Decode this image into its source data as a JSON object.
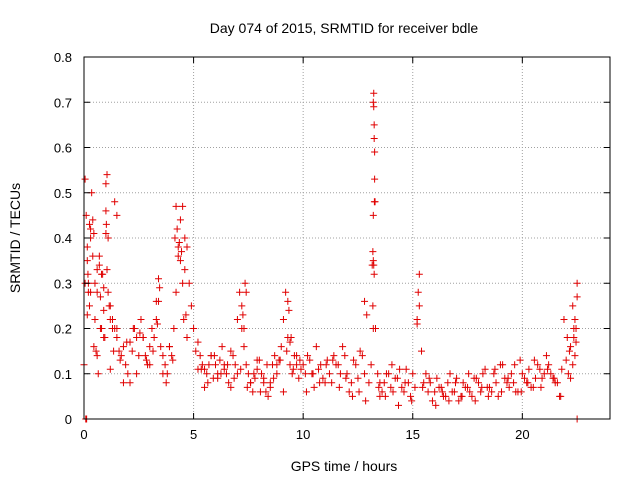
{
  "chart_data": {
    "type": "scatter",
    "title": "Day 074 of 2015, SRMTID for receiver bdle",
    "xlabel": "GPS time / hours",
    "ylabel": "SRMTID / TECUs",
    "xlim": [
      0,
      24
    ],
    "ylim": [
      0,
      0.8
    ],
    "xticks": [
      0,
      5,
      10,
      15,
      20
    ],
    "xtick_labels": [
      "0",
      "5",
      "10",
      "15",
      "20"
    ],
    "yticks": [
      0,
      0.1,
      0.2,
      0.3,
      0.4,
      0.5,
      0.6,
      0.7,
      0.8
    ],
    "ytick_labels": [
      "0",
      "0.1",
      "0.2",
      "0.3",
      "0.4",
      "0.5",
      "0.6",
      "0.7",
      "0.8"
    ],
    "grid": true,
    "marker": "+",
    "series": [
      {
        "name": "SRMTID",
        "color": "#e00000",
        "x": [
          0.0,
          0.05,
          0.1,
          0.15,
          0.2,
          0.25,
          0.3,
          0.4,
          0.5,
          0.6,
          0.7,
          0.8,
          0.9,
          1.0,
          1.05,
          1.1,
          1.2,
          1.3,
          1.4,
          1.5,
          1.6,
          1.7,
          1.8,
          1.9,
          2.0,
          2.1,
          2.2,
          2.3,
          2.4,
          2.5,
          2.6,
          2.7,
          2.8,
          2.9,
          3.0,
          3.1,
          3.2,
          3.3,
          3.4,
          3.5,
          3.6,
          3.7,
          3.8,
          3.9,
          4.0,
          4.1,
          4.2,
          4.3,
          4.4,
          4.5,
          4.6,
          4.7,
          4.8,
          4.9,
          5.0,
          5.1,
          5.2,
          5.3,
          5.4,
          5.5,
          5.6,
          5.7,
          5.8,
          5.9,
          6.0,
          6.1,
          6.2,
          6.3,
          6.4,
          6.5,
          6.6,
          6.7,
          6.8,
          6.9,
          7.0,
          7.1,
          7.2,
          7.3,
          7.4,
          7.5,
          7.6,
          7.7,
          7.8,
          7.9,
          8.0,
          8.1,
          8.2,
          8.3,
          8.4,
          8.5,
          8.6,
          8.7,
          8.8,
          8.9,
          9.0,
          9.1,
          9.2,
          9.3,
          9.4,
          9.5,
          9.6,
          9.7,
          9.8,
          9.9,
          10.0,
          10.2,
          10.4,
          10.6,
          10.8,
          11.0,
          11.2,
          11.4,
          11.6,
          11.8,
          12.0,
          12.2,
          12.4,
          12.6,
          12.8,
          13.0,
          13.1,
          13.15,
          13.2,
          13.25,
          13.3,
          13.4,
          13.5,
          13.6,
          13.8,
          14.0,
          14.2,
          14.4,
          14.6,
          14.8,
          15.0,
          15.1,
          15.2,
          15.3,
          15.4,
          15.6,
          15.8,
          16.0,
          16.2,
          16.4,
          16.6,
          16.8,
          17.0,
          17.2,
          17.4,
          17.6,
          17.8,
          18.0,
          18.2,
          18.4,
          18.6,
          18.8,
          19.0,
          19.2,
          19.4,
          19.6,
          19.8,
          20.0,
          20.2,
          20.4,
          20.6,
          20.8,
          21.0,
          21.2,
          21.4,
          21.6,
          21.8,
          22.0,
          22.1,
          22.2,
          22.3,
          22.35,
          22.4,
          22.45,
          22.5,
          13.18,
          13.18,
          13.2,
          13.2,
          13.22,
          13.22,
          13.24,
          13.24,
          13.26,
          13.26,
          13.28,
          13.2,
          13.22,
          13.24,
          0.05,
          0.08,
          0.1,
          0.12,
          0.15,
          0.18,
          0.2,
          0.25,
          0.3,
          0.35,
          0.4,
          0.45,
          0.5,
          0.55,
          0.6,
          0.65,
          0.7,
          0.75,
          0.8,
          0.85,
          0.9,
          0.95,
          1.0,
          1.0,
          1.02,
          1.05,
          1.1,
          1.15,
          1.2,
          1.3,
          1.4,
          1.5,
          4.15,
          4.2,
          4.25,
          4.3,
          4.35,
          4.4,
          4.45,
          4.5,
          4.55,
          4.6,
          4.65,
          4.7,
          3.3,
          3.35,
          3.4,
          3.45,
          7.2,
          7.25,
          7.3,
          7.35,
          7.4,
          9.3,
          9.35,
          9.4,
          9.45,
          12.7,
          12.8,
          12.9,
          15.2,
          15.25,
          15.3,
          22.3,
          22.35,
          22.4,
          22.45,
          22.5,
          22.5,
          22.2,
          0.3,
          0.6,
          0.9,
          1.2,
          1.5,
          1.8,
          2.1,
          2.4,
          2.7,
          3.0,
          3.6,
          3.9,
          5.2,
          5.5,
          5.8,
          6.1,
          6.4,
          6.7,
          7.0,
          7.6,
          7.9,
          8.2,
          8.5,
          8.8,
          9.1,
          9.7,
          10.1,
          10.3,
          10.5,
          10.7,
          10.9,
          11.1,
          11.3,
          11.5,
          11.7,
          11.9,
          12.1,
          12.3,
          12.5,
          13.5,
          13.7,
          13.9,
          14.1,
          14.3,
          14.5,
          14.7,
          14.9,
          15.5,
          15.7,
          15.9,
          16.1,
          16.3,
          16.5,
          16.7,
          16.9,
          17.1,
          17.3,
          17.5,
          17.7,
          17.9,
          18.1,
          18.3,
          18.5,
          18.7,
          18.9,
          19.1,
          19.3,
          19.5,
          19.7,
          19.9,
          20.1,
          20.3,
          20.5,
          20.7,
          20.9,
          21.1,
          21.3,
          21.5,
          21.7,
          21.9,
          22.05,
          0.15,
          0.45,
          0.75,
          1.35,
          1.65,
          1.95,
          2.25,
          2.55,
          2.85,
          3.15,
          3.75,
          4.05,
          5.35,
          5.65,
          5.95,
          6.25,
          6.55,
          6.85,
          7.15,
          7.45,
          7.75,
          8.05,
          8.35,
          8.65,
          8.95,
          9.25,
          9.55,
          9.85,
          10.15,
          10.45,
          10.75,
          11.05,
          11.35,
          11.65,
          11.95,
          12.25,
          12.55,
          12.85,
          13.45,
          13.75,
          14.05,
          14.35,
          14.65,
          14.95,
          15.45,
          15.75,
          16.05,
          16.35,
          16.65,
          16.95,
          17.25,
          17.55,
          17.85,
          18.15,
          18.45,
          18.75,
          19.05,
          19.35,
          19.65,
          19.95,
          20.25,
          20.55,
          20.85,
          21.15,
          21.45,
          21.75,
          22.15
        ],
        "y": [
          0.12,
          0.53,
          0.45,
          0.38,
          0.3,
          0.25,
          0.42,
          0.36,
          0.3,
          0.28,
          0.34,
          0.32,
          0.29,
          0.52,
          0.54,
          0.4,
          0.25,
          0.22,
          0.2,
          0.18,
          0.15,
          0.14,
          0.16,
          0.12,
          0.1,
          0.08,
          0.15,
          0.2,
          0.18,
          0.14,
          0.22,
          0.18,
          0.14,
          0.12,
          0.16,
          0.2,
          0.18,
          0.22,
          0.26,
          0.16,
          0.14,
          0.12,
          0.1,
          0.16,
          0.14,
          0.2,
          0.28,
          0.36,
          0.44,
          0.47,
          0.4,
          0.38,
          0.3,
          0.25,
          0.2,
          0.15,
          0.17,
          0.14,
          0.12,
          0.11,
          0.1,
          0.12,
          0.14,
          0.09,
          0.12,
          0.1,
          0.13,
          0.16,
          0.12,
          0.1,
          0.08,
          0.07,
          0.14,
          0.12,
          0.22,
          0.28,
          0.2,
          0.16,
          0.12,
          0.1,
          0.08,
          0.06,
          0.09,
          0.11,
          0.13,
          0.1,
          0.08,
          0.06,
          0.05,
          0.08,
          0.12,
          0.14,
          0.1,
          0.13,
          0.16,
          0.22,
          0.28,
          0.18,
          0.12,
          0.1,
          0.14,
          0.12,
          0.09,
          0.11,
          0.12,
          0.14,
          0.1,
          0.16,
          0.12,
          0.08,
          0.1,
          0.14,
          0.12,
          0.16,
          0.1,
          0.08,
          0.12,
          0.15,
          0.1,
          0.08,
          0.12,
          0.34,
          0.7,
          0.48,
          0.2,
          0.1,
          0.08,
          0.06,
          0.1,
          0.07,
          0.09,
          0.11,
          0.06,
          0.08,
          0.1,
          0.07,
          0.22,
          0.25,
          0.15,
          0.1,
          0.08,
          0.06,
          0.07,
          0.05,
          0.08,
          0.06,
          0.09,
          0.05,
          0.07,
          0.06,
          0.09,
          0.08,
          0.1,
          0.07,
          0.06,
          0.08,
          0.12,
          0.09,
          0.07,
          0.08,
          0.06,
          0.1,
          0.08,
          0.07,
          0.09,
          0.11,
          0.1,
          0.12,
          0.09,
          0.08,
          0.11,
          0.13,
          0.1,
          0.16,
          0.12,
          0.18,
          0.14,
          0.2,
          0.3,
          0.37,
          0.25,
          0.2,
          0.35,
          0.72,
          0.69,
          0.65,
          0.62,
          0.59,
          0.53,
          0.48,
          0.45,
          0.34,
          0.32,
          0.3,
          0.0,
          0.0,
          0.0,
          0.35,
          0.32,
          0.28,
          0.43,
          0.4,
          0.5,
          0.44,
          0.41,
          0.22,
          0.15,
          0.33,
          0.1,
          0.36,
          0.27,
          0.2,
          0.32,
          0.24,
          0.18,
          0.46,
          0.41,
          0.43,
          0.33,
          0.28,
          0.25,
          0.22,
          0.2,
          0.48,
          0.45,
          0.4,
          0.47,
          0.42,
          0.38,
          0.39,
          0.35,
          0.37,
          0.3,
          0.22,
          0.33,
          0.23,
          0.18,
          0.26,
          0.21,
          0.31,
          0.29,
          0.25,
          0.23,
          0.2,
          0.3,
          0.28,
          0.26,
          0.24,
          0.17,
          0.18,
          0.14,
          0.26,
          0.23,
          0.21,
          0.28,
          0.32,
          0.25,
          0.2,
          0.22,
          0.17,
          0.0,
          0.27,
          0.09,
          0.28,
          0.14,
          0.18,
          0.11,
          0.2,
          0.08,
          0.17,
          0.1,
          0.18,
          0.12,
          0.1,
          0.16,
          0.11,
          0.07,
          0.14,
          0.09,
          0.11,
          0.15,
          0.1,
          0.08,
          0.13,
          0.09,
          0.07,
          0.12,
          0.06,
          0.14,
          0.1,
          0.13,
          0.07,
          0.11,
          0.09,
          0.13,
          0.08,
          0.12,
          0.1,
          0.14,
          0.06,
          0.13,
          0.09,
          0.05,
          0.08,
          0.1,
          0.06,
          0.09,
          0.07,
          0.11,
          0.05,
          0.08,
          0.06,
          0.04,
          0.09,
          0.07,
          0.05,
          0.1,
          0.06,
          0.04,
          0.08,
          0.07,
          0.05,
          0.09,
          0.06,
          0.11,
          0.07,
          0.1,
          0.05,
          0.12,
          0.08,
          0.1,
          0.06,
          0.13,
          0.09,
          0.11,
          0.07,
          0.12,
          0.09,
          0.14,
          0.1,
          0.08,
          0.05,
          0.22,
          0.18,
          0.23,
          0.16,
          0.2,
          0.15,
          0.13,
          0.17,
          0.2,
          0.19,
          0.13,
          0.15,
          0.08,
          0.13,
          0.11,
          0.08,
          0.14,
          0.1,
          0.12,
          0.09,
          0.11,
          0.07,
          0.1,
          0.06,
          0.12,
          0.09,
          0.13,
          0.15,
          0.11,
          0.13,
          0.06,
          0.1,
          0.08,
          0.12,
          0.13,
          0.07,
          0.09,
          0.05,
          0.06,
          0.04,
          0.07,
          0.05,
          0.12,
          0.03,
          0.08,
          0.04,
          0.07,
          0.09,
          0.03,
          0.06,
          0.04,
          0.08,
          0.05,
          0.1,
          0.04,
          0.07,
          0.05,
          0.11,
          0.06,
          0.09,
          0.12,
          0.06,
          0.08,
          0.13,
          0.07,
          0.11,
          0.09,
          0.05,
          0.15
        ]
      }
    ]
  }
}
